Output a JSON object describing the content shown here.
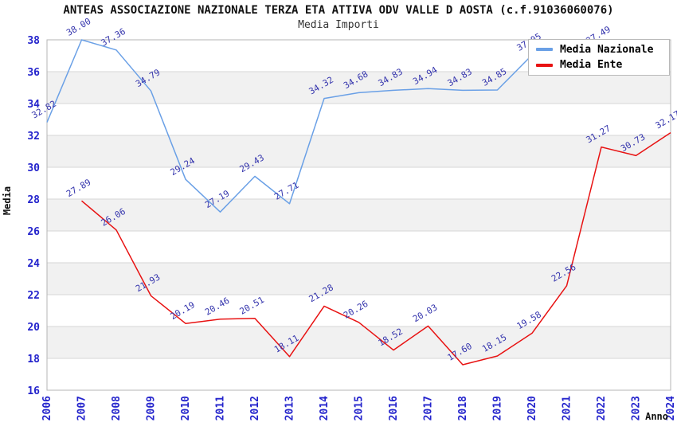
{
  "header": {
    "title": "ANTEAS ASSOCIAZIONE NAZIONALE TERZA ETA ATTIVA ODV VALLE D AOSTA (c.f.91036060076)",
    "subtitle": "Media Importi"
  },
  "legend": {
    "items": [
      {
        "label": "Media Nazionale",
        "color": "#6aa0e6"
      },
      {
        "label": "Media Ente",
        "color": "#e81212"
      }
    ]
  },
  "colors": {
    "band_gray": "#f1f1f1",
    "gridline": "#d6d6d6",
    "frame": "#b5b5b5",
    "axis_tick_text": "#2424cc",
    "data_label_text": "#3535ad",
    "axis_title_text": "#111111"
  },
  "chart_data": {
    "type": "line",
    "title": "ANTEAS ASSOCIAZIONE NAZIONALE TERZA ETA ATTIVA ODV VALLE D AOSTA (c.f.91036060076)",
    "subtitle": "Media Importi",
    "xlabel": "Anno",
    "ylabel": "Media",
    "ylim": [
      16,
      38
    ],
    "ytick_step": 2,
    "grid": "horizontal gridlines with alternating gray bands every 2 units",
    "legend_position": "top-right",
    "years": [
      2006,
      2007,
      2008,
      2009,
      2010,
      2011,
      2012,
      2013,
      2014,
      2015,
      2016,
      2017,
      2018,
      2019,
      2020,
      2021,
      2022,
      2023,
      2024
    ],
    "series": [
      {
        "name": "Media Nazionale",
        "color": "#6aa0e6",
        "points": [
          {
            "year": 2006,
            "value": 32.82,
            "label": "32.82"
          },
          {
            "year": 2007,
            "value": 38.0,
            "label": "38.00"
          },
          {
            "year": 2008,
            "value": 37.36,
            "label": "37.36"
          },
          {
            "year": 2009,
            "value": 34.79,
            "label": "34.79"
          },
          {
            "year": 2010,
            "value": 29.24,
            "label": "29.24"
          },
          {
            "year": 2011,
            "value": 27.19,
            "label": "27.19"
          },
          {
            "year": 2012,
            "value": 29.43,
            "label": "29.43"
          },
          {
            "year": 2013,
            "value": 27.71,
            "label": "27.71"
          },
          {
            "year": 2014,
            "value": 34.32,
            "label": "34.32"
          },
          {
            "year": 2015,
            "value": 34.68,
            "label": "34.68"
          },
          {
            "year": 2016,
            "value": 34.83,
            "label": "34.83"
          },
          {
            "year": 2017,
            "value": 34.94,
            "label": "34.94"
          },
          {
            "year": 2018,
            "value": 34.83,
            "label": "34.83"
          },
          {
            "year": 2019,
            "value": 34.85,
            "label": "34.85"
          },
          {
            "year": 2020,
            "value": 37.05,
            "label": "37.05"
          },
          {
            "year": 2021,
            "value": 37.46,
            "label": "",
            "label_hidden_behind_legend": true
          },
          {
            "year": 2022,
            "value": 37.49,
            "label": "37.49"
          }
        ]
      },
      {
        "name": "Media Ente",
        "color": "#e81212",
        "points": [
          {
            "year": 2007,
            "value": 27.89,
            "label": "27.89"
          },
          {
            "year": 2008,
            "value": 26.06,
            "label": "26.06"
          },
          {
            "year": 2009,
            "value": 21.93,
            "label": "21.93"
          },
          {
            "year": 2010,
            "value": 20.19,
            "label": "20.19"
          },
          {
            "year": 2011,
            "value": 20.46,
            "label": "20.46"
          },
          {
            "year": 2012,
            "value": 20.51,
            "label": "20.51"
          },
          {
            "year": 2013,
            "value": 18.11,
            "label": "18.11"
          },
          {
            "year": 2014,
            "value": 21.28,
            "label": "21.28"
          },
          {
            "year": 2015,
            "value": 20.26,
            "label": "20.26"
          },
          {
            "year": 2016,
            "value": 18.52,
            "label": "18.52"
          },
          {
            "year": 2017,
            "value": 20.03,
            "label": "20.03"
          },
          {
            "year": 2018,
            "value": 17.6,
            "label": "17.60"
          },
          {
            "year": 2019,
            "value": 18.15,
            "label": "18.15"
          },
          {
            "year": 2020,
            "value": 19.58,
            "label": "19.58"
          },
          {
            "year": 2021,
            "value": 22.56,
            "label": "22.56"
          },
          {
            "year": 2022,
            "value": 31.27,
            "label": "31.27"
          },
          {
            "year": 2023,
            "value": 30.73,
            "label": "30.73"
          },
          {
            "year": 2024,
            "value": 32.17,
            "label": "32.17"
          }
        ]
      }
    ]
  }
}
